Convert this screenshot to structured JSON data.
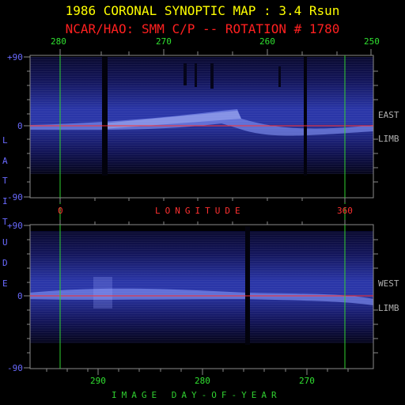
{
  "header": {
    "title": "1986 CORONAL SYNOPTIC MAP : 3.4 Rsun",
    "subtitle": "NCAR/HAO: SMM C/P -- ROTATION # 1780"
  },
  "top_panel": {
    "longitude_ticks": [
      "280",
      "270",
      "260",
      "250"
    ],
    "side_label_1": "EAST",
    "side_label_2": "LIMB",
    "lat_max": "+90",
    "lat_mid": "0",
    "lat_min": "-90"
  },
  "middle_axis": {
    "left_value": "0",
    "label": "LONGITUDE",
    "right_value": "360"
  },
  "left_axis": {
    "letters": [
      "L",
      "A",
      "T",
      "I",
      "T",
      "U",
      "D",
      "E"
    ]
  },
  "bottom_panel": {
    "doy_ticks": [
      "290",
      "280",
      "270"
    ],
    "side_label_1": "WEST",
    "side_label_2": "LIMB",
    "lat_max": "+90",
    "lat_mid": "0",
    "lat_min": "-90"
  },
  "footer": {
    "label": "IMAGE DAY-OF-YEAR"
  },
  "colors": {
    "title": "#ffff00",
    "subtitle": "#ff2020",
    "green_lines": "#30d030",
    "red_equator": "#ff3030",
    "latitude_text": "#6a6aff",
    "frame": "#8a8a8a"
  }
}
